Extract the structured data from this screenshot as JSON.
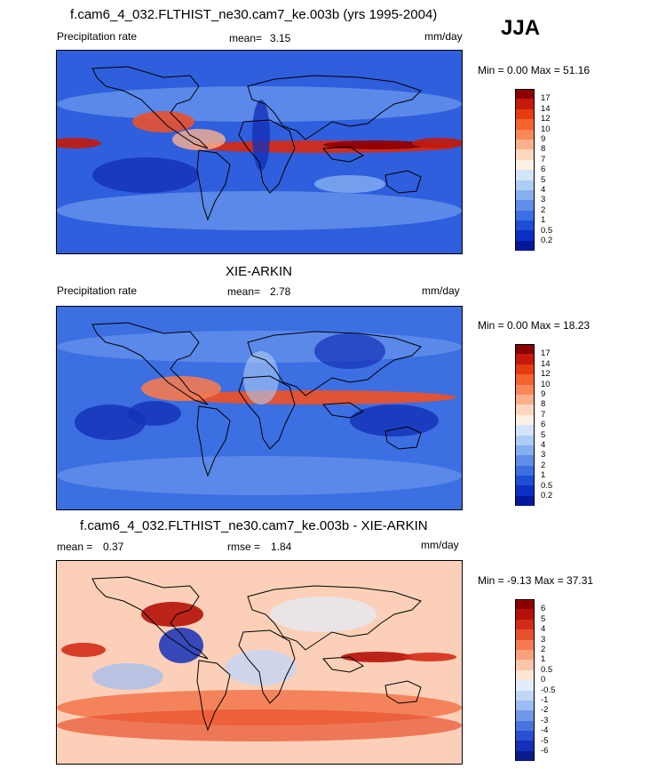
{
  "season": "JJA",
  "panels": [
    {
      "title": "f.cam6_4_032.FLTHIST_ne30.cam7_ke.003b (yrs 1995-2004)",
      "left_label": "Precipitation rate",
      "mid_label": "mean=",
      "mid_value": "3.15",
      "unit": "mm/day",
      "minmax": "Min =   0.00 Max =  51.16"
    },
    {
      "title": "XIE-ARKIN",
      "left_label": "Precipitation rate",
      "mid_label": "mean=",
      "mid_value": "2.78",
      "unit": "mm/day",
      "minmax": "Min =   0.00 Max =  18.23"
    },
    {
      "title": "f.cam6_4_032.FLTHIST_ne30.cam7_ke.003b - XIE-ARKIN",
      "left_label": "mean =",
      "left_value": "0.37",
      "mid_label": "rmse =",
      "mid_value": "1.84",
      "unit": "mm/day",
      "minmax": "Min =  -9.13 Max =  37.31"
    }
  ],
  "chart_data": [
    {
      "type": "heatmap",
      "title": "f.cam6_4_032.FLTHIST_ne30.cam7_ke.003b (yrs 1995-2004)",
      "variable": "Precipitation rate",
      "units": "mm/day",
      "mean": 3.15,
      "min": 0.0,
      "max": 51.16,
      "colorbar_levels": [
        "17",
        "14",
        "12",
        "10",
        "9",
        "8",
        "7",
        "6",
        "5",
        "4",
        "3",
        "2",
        "1",
        "0.5",
        "0.2"
      ],
      "colorbar_colors": [
        "#8b0000",
        "#c41a0a",
        "#e63b12",
        "#f4622e",
        "#f8875a",
        "#fbb08d",
        "#fdd7bd",
        "#fdf0e4",
        "#d3e3f8",
        "#aecdf5",
        "#86aff0",
        "#5f8eea",
        "#3c6fe2",
        "#1f4ed6",
        "#0a2fc2",
        "#06189a"
      ]
    },
    {
      "type": "heatmap",
      "title": "XIE-ARKIN",
      "variable": "Precipitation rate",
      "units": "mm/day",
      "mean": 2.78,
      "min": 0.0,
      "max": 18.23,
      "colorbar_levels": [
        "17",
        "14",
        "12",
        "10",
        "9",
        "8",
        "7",
        "6",
        "5",
        "4",
        "3",
        "2",
        "1",
        "0.5",
        "0.2"
      ],
      "colorbar_colors": [
        "#8b0000",
        "#c41a0a",
        "#e63b12",
        "#f4622e",
        "#f8875a",
        "#fbb08d",
        "#fdd7bd",
        "#fdf0e4",
        "#d3e3f8",
        "#aecdf5",
        "#86aff0",
        "#5f8eea",
        "#3c6fe2",
        "#1f4ed6",
        "#0a2fc2",
        "#06189a"
      ]
    },
    {
      "type": "heatmap",
      "title": "f.cam6_4_032.FLTHIST_ne30.cam7_ke.003b - XIE-ARKIN",
      "units": "mm/day",
      "mean": 0.37,
      "rmse": 1.84,
      "min": -9.13,
      "max": 37.31,
      "colorbar_levels": [
        "6",
        "5",
        "4",
        "3",
        "2",
        "1",
        "0.5",
        "0",
        "-0.5",
        "-1",
        "-2",
        "-3",
        "-4",
        "-5",
        "-6"
      ],
      "colorbar_colors": [
        "#8b0000",
        "#b41008",
        "#d32b17",
        "#e8512d",
        "#f37a52",
        "#f9a17d",
        "#fcc6aa",
        "#fde6d8",
        "#e2ecfb",
        "#c2d6f7",
        "#9cbdf2",
        "#7199ea",
        "#4a74df",
        "#2a50d1",
        "#1430b8",
        "#0a1a8c"
      ]
    }
  ]
}
